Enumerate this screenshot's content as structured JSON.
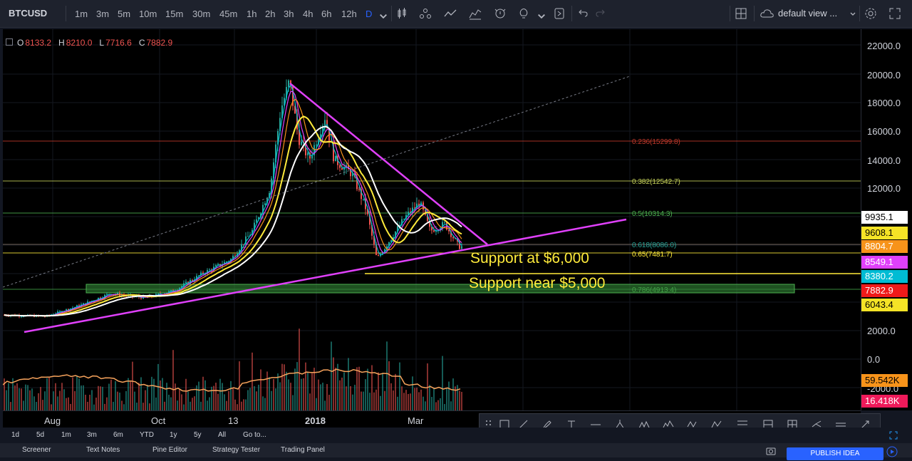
{
  "header": {
    "symbol": "BTCUSD",
    "intervals": [
      "1m",
      "3m",
      "5m",
      "10m",
      "15m",
      "30m",
      "45m",
      "1h",
      "2h",
      "3h",
      "4h",
      "6h",
      "12h",
      "D"
    ],
    "active_interval": "D",
    "layout_name": "default view ..."
  },
  "ohlc": {
    "o_label": "O",
    "o": "8133.2",
    "h_label": "H",
    "h": "8210.0",
    "l_label": "L",
    "l": "7716.6",
    "c_label": "C",
    "c": "7882.9"
  },
  "price_scale": [
    "22000.0",
    "20000.0",
    "18000.0",
    "16000.0",
    "14000.0",
    "12000.0",
    "2000.0",
    "0.0",
    "-2000.0"
  ],
  "price_badges": [
    {
      "text": "9935.1",
      "bg": "#ffffff",
      "fg": "#000000"
    },
    {
      "text": "9608.1",
      "bg": "#f5e326",
      "fg": "#000000"
    },
    {
      "text": "8804.7",
      "bg": "#f7931a",
      "fg": "#ffffff"
    },
    {
      "text": "8549.1",
      "bg": "#e040fb",
      "fg": "#ffffff"
    },
    {
      "text": "8380.2",
      "bg": "#00bcd4",
      "fg": "#ffffff"
    },
    {
      "text": "7882.9",
      "bg": "#ef1a1a",
      "fg": "#ffffff"
    },
    {
      "text": "6043.4",
      "bg": "#f5e326",
      "fg": "#000000"
    },
    {
      "text": "59.542K",
      "bg": "#f7931a",
      "fg": "#000000"
    },
    {
      "text": "16.418K",
      "bg": "#ef1a5a",
      "fg": "#ffffff"
    }
  ],
  "time_axis": [
    "Aug",
    "Oct",
    "13",
    "2018",
    "Mar"
  ],
  "fib_levels": [
    {
      "label": "0.236(15299.8)",
      "color": "#c0392b"
    },
    {
      "label": "0.382(12542.7)",
      "color": "#c6d25a"
    },
    {
      "label": "0.5(10314.3)",
      "color": "#4caf50"
    },
    {
      "label": "0.618(8086.0)",
      "color": "#26a69a"
    },
    {
      "label": "0.65(7481.7)",
      "color": "#ffeb3b"
    },
    {
      "label": "0.786(4913.4)",
      "color": "#43a047"
    }
  ],
  "annotations": {
    "support_1": "Support at $6,000",
    "support_2": "Support near $5,000"
  },
  "range_buttons": [
    "1d",
    "5d",
    "1m",
    "3m",
    "6m",
    "YTD",
    "1y",
    "5y",
    "All",
    "Go to..."
  ],
  "footer_tabs": [
    "Screener",
    "Text Notes",
    "Pine Editor",
    "Strategy Tester",
    "Trading Panel"
  ],
  "publish_label": "PUBLISH IDEA",
  "colors": {
    "trendline": "#e040fb",
    "support_line": "#ffeb3b",
    "up_candle": "#26a69a",
    "down_candle": "#ef5350"
  }
}
